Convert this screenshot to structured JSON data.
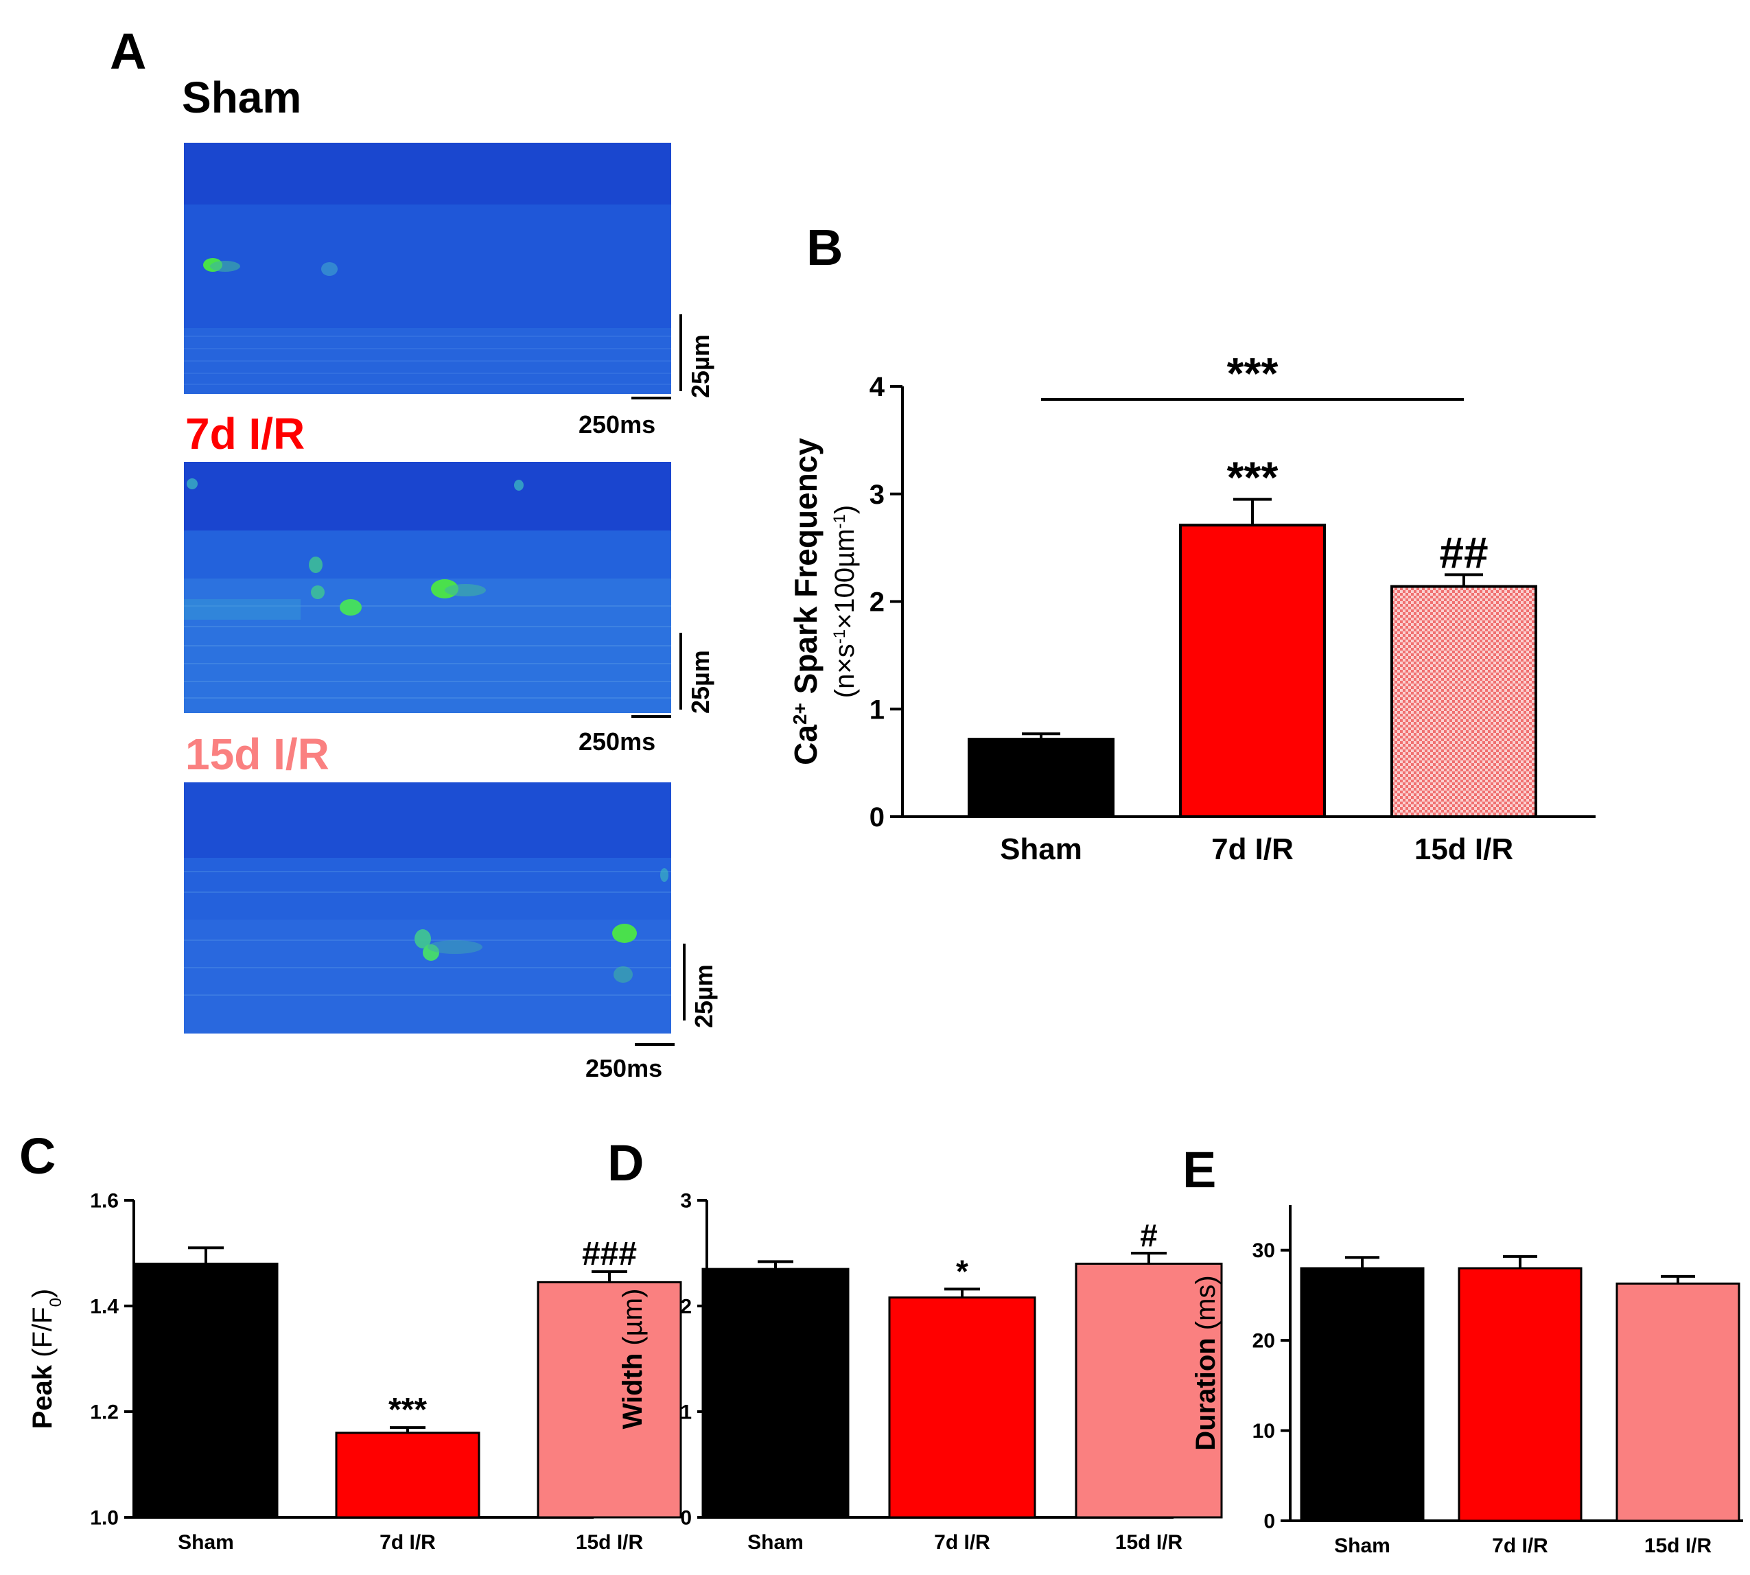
{
  "panels": {
    "A": "A",
    "B": "B",
    "C": "C",
    "D": "D",
    "E": "E"
  },
  "panel_a": {
    "groups": [
      {
        "label": "Sham",
        "color": "#000000",
        "scale_um": "25µm",
        "scale_ms": "250ms"
      },
      {
        "label": "7d I/R",
        "color": "#ff0000",
        "scale_um": "25µm",
        "scale_ms": "250ms"
      },
      {
        "label": "15d I/R",
        "color": "#fa8080",
        "scale_um": "25µm",
        "scale_ms": "250ms"
      }
    ]
  },
  "colors": {
    "sham": "#000000",
    "d7": "#ff0000",
    "d15": "#fa8080",
    "linescan_bg": "#1f57d8"
  },
  "chart_data": [
    {
      "id": "B",
      "type": "bar",
      "categories": [
        "Sham",
        "7d I/R",
        "15d I/R"
      ],
      "values": [
        0.72,
        2.71,
        2.14
      ],
      "errors": [
        0.05,
        0.24,
        0.11
      ],
      "annotations": [
        "",
        "***",
        "##"
      ],
      "bracket": {
        "label": "***"
      },
      "ylabel": "Ca2+ Spark Frequency (n×s-1×100µm-1)",
      "ylabel_line1": "Ca",
      "ylabel_sup1": "2+",
      "ylabel_line1_rest": " Spark Frequency",
      "ylabel_line2": "(n×s",
      "ylabel_sup2": "-1",
      "ylabel_line2_mid": "×100µm",
      "ylabel_sup3": "-1",
      "ylabel_line2_end": ")",
      "ylim": [
        0,
        4
      ],
      "yticks": [
        "0",
        "1",
        "2",
        "3",
        "4"
      ]
    },
    {
      "id": "C",
      "type": "bar",
      "categories": [
        "Sham",
        "7d I/R",
        "15d I/R"
      ],
      "values": [
        1.48,
        1.16,
        1.445
      ],
      "errors": [
        0.03,
        0.01,
        0.02
      ],
      "annotations": [
        "",
        "***",
        "###"
      ],
      "ylabel_bold": "Peak",
      "ylabel_rest": " (F/F",
      "ylabel_sub": "0",
      "ylabel_end": ")",
      "ylim": [
        1.0,
        1.6
      ],
      "yticks": [
        "1.0",
        "1.2",
        "1.4",
        "1.6"
      ]
    },
    {
      "id": "D",
      "type": "bar",
      "categories": [
        "Sham",
        "7d I/R",
        "15d I/R"
      ],
      "values": [
        2.35,
        2.08,
        2.4
      ],
      "errors": [
        0.07,
        0.08,
        0.1
      ],
      "annotations": [
        "",
        "*",
        "#"
      ],
      "ylabel_bold": "Width",
      "ylabel_rest": " (µm)",
      "ylim": [
        0,
        3
      ],
      "yticks": [
        "0",
        "1",
        "2",
        "3"
      ]
    },
    {
      "id": "E",
      "type": "bar",
      "categories": [
        "Sham",
        "7d I/R",
        "15d I/R"
      ],
      "values": [
        28,
        28,
        26.3
      ],
      "errors": [
        1.2,
        1.3,
        0.8
      ],
      "annotations": [
        "",
        "",
        ""
      ],
      "ylabel_bold": "Duration",
      "ylabel_rest": " (ms)",
      "ylim": [
        0,
        35
      ],
      "yticks": [
        "0",
        "10",
        "20",
        "30"
      ]
    }
  ]
}
